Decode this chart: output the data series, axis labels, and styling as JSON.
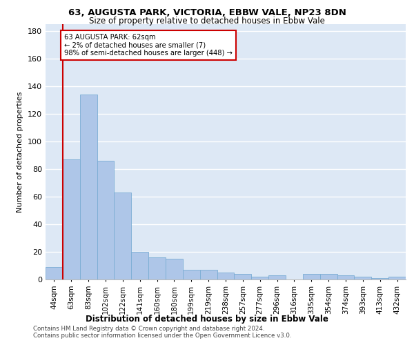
{
  "title1": "63, AUGUSTA PARK, VICTORIA, EBBW VALE, NP23 8DN",
  "title2": "Size of property relative to detached houses in Ebbw Vale",
  "xlabel": "Distribution of detached houses by size in Ebbw Vale",
  "ylabel": "Number of detached properties",
  "categories": [
    "44sqm",
    "63sqm",
    "83sqm",
    "102sqm",
    "122sqm",
    "141sqm",
    "160sqm",
    "180sqm",
    "199sqm",
    "219sqm",
    "238sqm",
    "257sqm",
    "277sqm",
    "296sqm",
    "316sqm",
    "335sqm",
    "354sqm",
    "374sqm",
    "393sqm",
    "413sqm",
    "432sqm"
  ],
  "values": [
    9,
    87,
    134,
    86,
    63,
    20,
    16,
    15,
    7,
    7,
    5,
    4,
    2,
    3,
    0,
    4,
    4,
    3,
    2,
    1,
    2
  ],
  "bar_color": "#aec6e8",
  "bar_edge_color": "#7aadd4",
  "annotation_line1": "63 AUGUSTA PARK: 62sqm",
  "annotation_line2": "← 2% of detached houses are smaller (7)",
  "annotation_line3": "98% of semi-detached houses are larger (448) →",
  "vline_color": "#cc0000",
  "annotation_box_edge": "#cc0000",
  "ylim": [
    0,
    185
  ],
  "yticks": [
    0,
    20,
    40,
    60,
    80,
    100,
    120,
    140,
    160,
    180
  ],
  "background_color": "#dde8f5",
  "footer_line1": "Contains HM Land Registry data © Crown copyright and database right 2024.",
  "footer_line2": "Contains public sector information licensed under the Open Government Licence v3.0."
}
